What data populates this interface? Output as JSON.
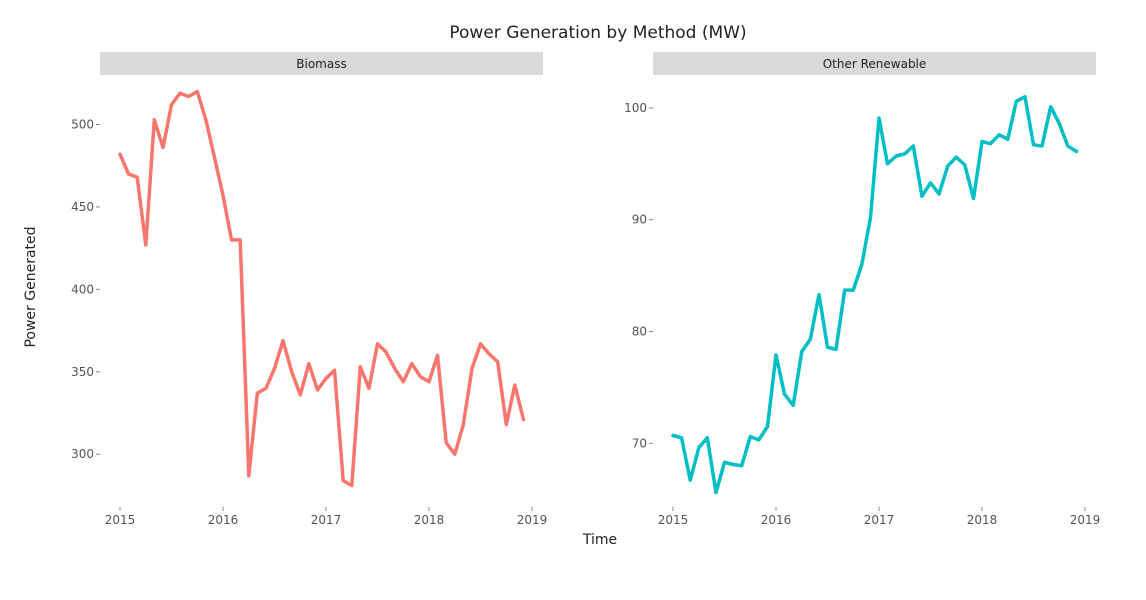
{
  "chart_data": {
    "type": "line",
    "title": "Power Generation by Method (MW)",
    "xlabel": "Time",
    "ylabel": "Power Generated",
    "grid": false,
    "x": [
      2015.0,
      2015.083,
      2015.167,
      2015.25,
      2015.333,
      2015.417,
      2015.5,
      2015.583,
      2015.667,
      2015.75,
      2015.833,
      2015.917,
      2016.0,
      2016.083,
      2016.167,
      2016.25,
      2016.333,
      2016.417,
      2016.5,
      2016.583,
      2016.667,
      2016.75,
      2016.833,
      2016.917,
      2017.0,
      2017.083,
      2017.167,
      2017.25,
      2017.333,
      2017.417,
      2017.5,
      2017.583,
      2017.667,
      2017.75,
      2017.833,
      2017.917,
      2018.0,
      2018.083,
      2018.167,
      2018.25,
      2018.333,
      2018.417,
      2018.5,
      2018.583,
      2018.667,
      2018.75,
      2018.833,
      2018.917
    ],
    "xticks": [
      "2015",
      "2016",
      "2017",
      "2018",
      "2019"
    ],
    "panels": [
      {
        "label": "Biomass",
        "color": "#F8766D",
        "ylim": [
          268,
          527
        ],
        "yticks": [
          "300",
          "350",
          "400",
          "450",
          "500"
        ],
        "values": [
          482,
          470,
          468,
          427,
          503,
          486,
          512,
          519,
          517,
          520,
          503,
          480,
          457,
          430,
          430,
          287,
          337,
          340,
          352,
          369,
          350,
          336,
          355,
          339,
          346,
          351,
          284,
          281,
          353,
          340,
          367,
          362,
          352,
          344,
          355,
          347,
          344,
          360,
          307,
          300,
          318,
          352,
          367,
          361,
          356,
          318,
          342,
          321
        ]
      },
      {
        "label": "Other Renewable",
        "color": "#00BFC4",
        "ylim": [
          64.3,
          102.5
        ],
        "yticks": [
          "70",
          "80",
          "90",
          "100"
        ],
        "values": [
          70.7,
          70.5,
          66.7,
          69.6,
          70.5,
          65.6,
          68.3,
          68.1,
          68.0,
          70.6,
          70.3,
          71.5,
          77.9,
          74.4,
          73.4,
          78.2,
          79.3,
          83.3,
          78.6,
          78.4,
          83.7,
          83.7,
          86.0,
          90.2,
          99.1,
          95.0,
          95.7,
          95.9,
          96.6,
          92.1,
          93.3,
          92.3,
          94.8,
          95.6,
          94.9,
          91.9,
          97.0,
          96.8,
          97.6,
          97.2,
          100.6,
          101.0,
          96.7,
          96.6,
          100.1,
          98.6,
          96.6,
          96.1
        ]
      }
    ]
  }
}
